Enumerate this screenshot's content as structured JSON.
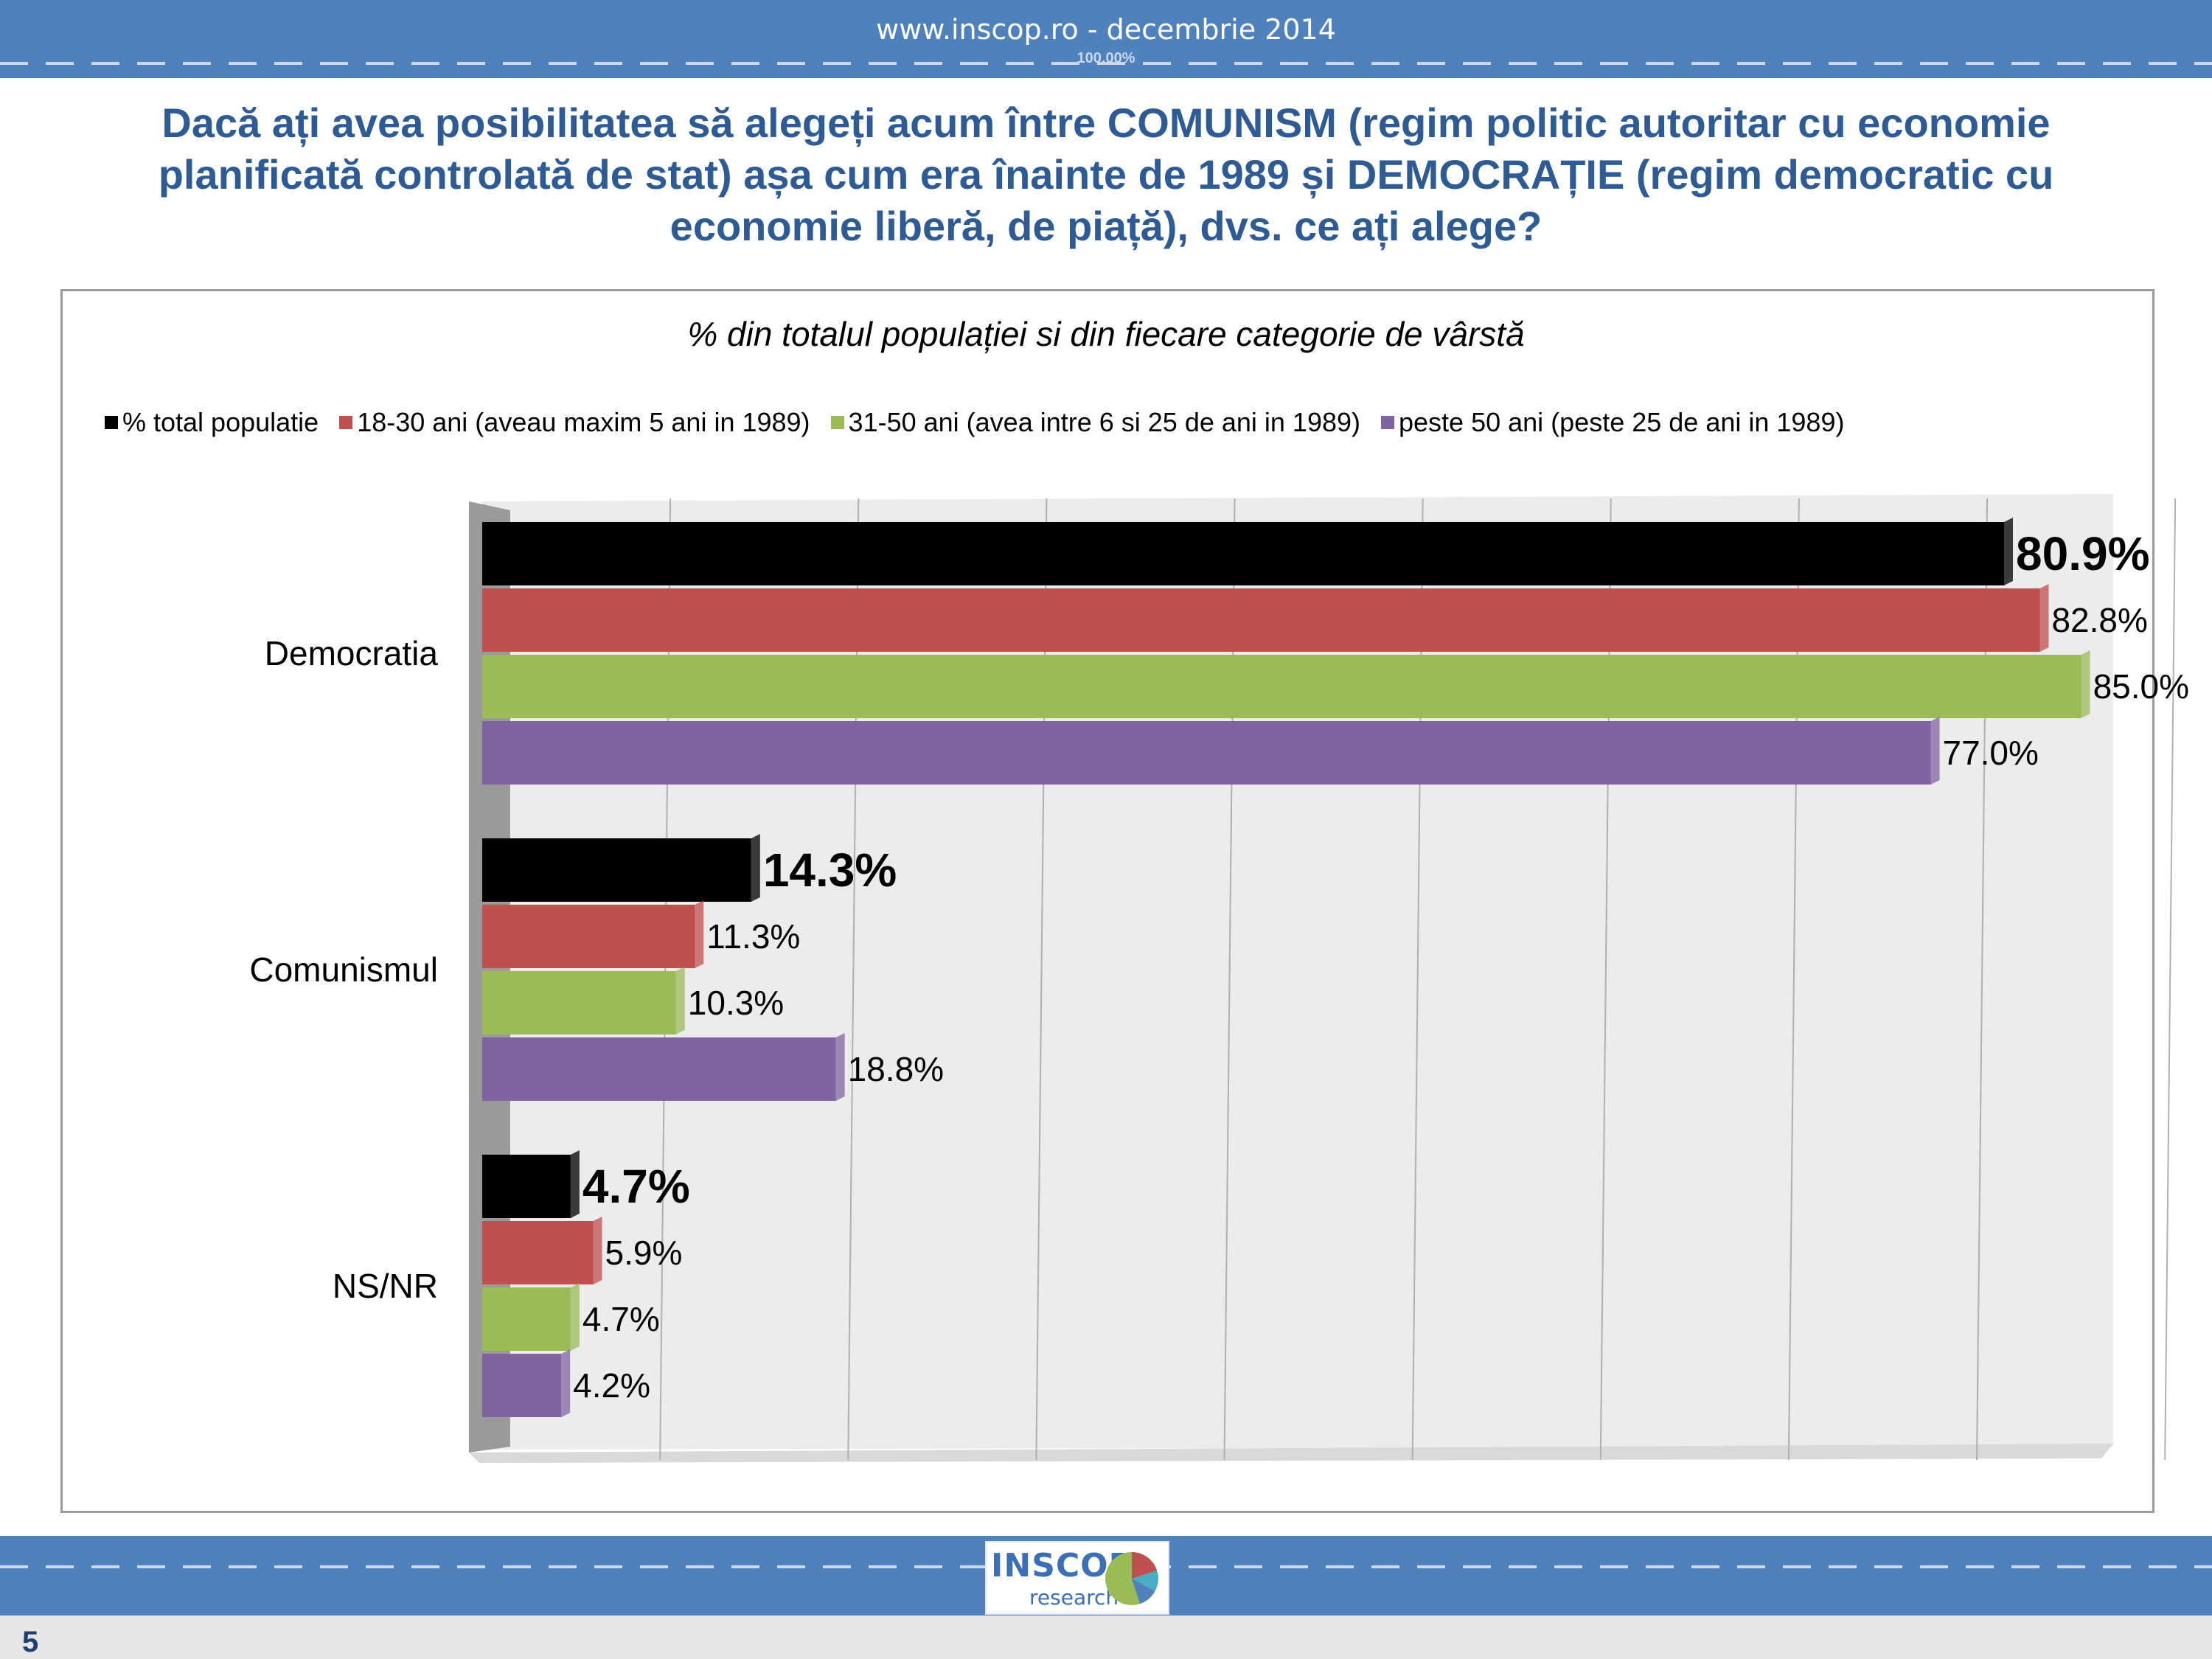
{
  "header": {
    "site": "www.inscop.ro   -   decembrie 2014",
    "zoom": "100.00%"
  },
  "question": "Dacă ați avea posibilitatea să alegeți acum între COMUNISM (regim politic autoritar cu economie planificată controlată de stat) așa cum era înainte de 1989 și DEMOCRAȚIE (regim democratic cu economie liberă, de piață), dvs. ce ați alege?",
  "chart_data": {
    "type": "bar",
    "orientation": "horizontal",
    "title": "% din totalul populației si din fiecare categorie de vârstă",
    "categories": [
      "Democratia",
      "Comunismul",
      "NS/NR"
    ],
    "series": [
      {
        "name": "% total populatie",
        "color": "#000000",
        "values": [
          80.9,
          14.3,
          4.7
        ],
        "labels": [
          "80.9%",
          "14.3%",
          "4.7%"
        ]
      },
      {
        "name": "18-30 ani (aveau maxim 5 ani in 1989)",
        "color": "#c0504d",
        "values": [
          82.8,
          11.3,
          5.9
        ],
        "labels": [
          "82.8%",
          "11.3%",
          "5.9%"
        ]
      },
      {
        "name": "31-50 ani (avea intre 6 si 25 de ani in 1989)",
        "color": "#9bbb59",
        "values": [
          85.0,
          10.3,
          4.7
        ],
        "labels": [
          "85.0%",
          "10.3%",
          "4.7%"
        ]
      },
      {
        "name": "peste 50 ani (peste 25 de ani in 1989)",
        "color": "#8064a2",
        "values": [
          77.0,
          18.8,
          4.2
        ],
        "labels": [
          "77.0%",
          "18.8%",
          "4.2%"
        ]
      }
    ],
    "xlim": [
      0,
      90
    ],
    "grid": true,
    "legend": "top"
  },
  "footer": {
    "page": "5",
    "logo_text": "INSCOP",
    "logo_sub": "research"
  }
}
